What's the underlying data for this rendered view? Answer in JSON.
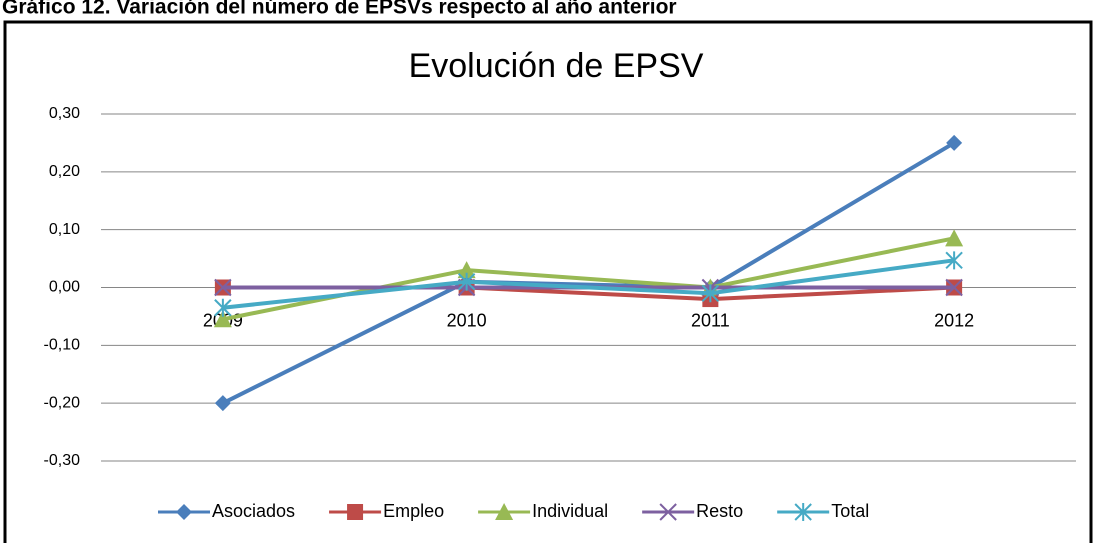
{
  "header": "Gráfico 12. Variación del número de EPSVs respecto al año anterior",
  "chart_data": {
    "type": "line",
    "title": "Evolución de EPSV",
    "categories": [
      "2009",
      "2010",
      "2011",
      "2012"
    ],
    "series": [
      {
        "name": "Asociados",
        "color": "#4a7ebb",
        "marker": "diamond",
        "values": [
          -0.2,
          0.01,
          0.0,
          0.25
        ]
      },
      {
        "name": "Empleo",
        "color": "#be4b48",
        "marker": "square",
        "values": [
          0.0,
          0.0,
          -0.02,
          0.0
        ]
      },
      {
        "name": "Individual",
        "color": "#98b954",
        "marker": "triangle",
        "values": [
          -0.055,
          0.03,
          0.0,
          0.085
        ]
      },
      {
        "name": "Resto",
        "color": "#7d60a0",
        "marker": "x",
        "values": [
          0.0,
          0.0,
          0.0,
          0.0
        ]
      },
      {
        "name": "Total",
        "color": "#46aac5",
        "marker": "asterisk",
        "values": [
          -0.035,
          0.01,
          -0.01,
          0.047
        ]
      }
    ],
    "ylim": [
      -0.3,
      0.3
    ],
    "yticks": [
      {
        "value": -0.3,
        "label": "-0,30"
      },
      {
        "value": -0.2,
        "label": "-0,20"
      },
      {
        "value": -0.1,
        "label": "-0,10"
      },
      {
        "value": 0,
        "label": "0,00"
      },
      {
        "value": 0.1,
        "label": "0,10"
      },
      {
        "value": 0.2,
        "label": "0,20"
      },
      {
        "value": 0.3,
        "label": "0,30"
      }
    ],
    "grid": true,
    "legend": "bottom"
  }
}
